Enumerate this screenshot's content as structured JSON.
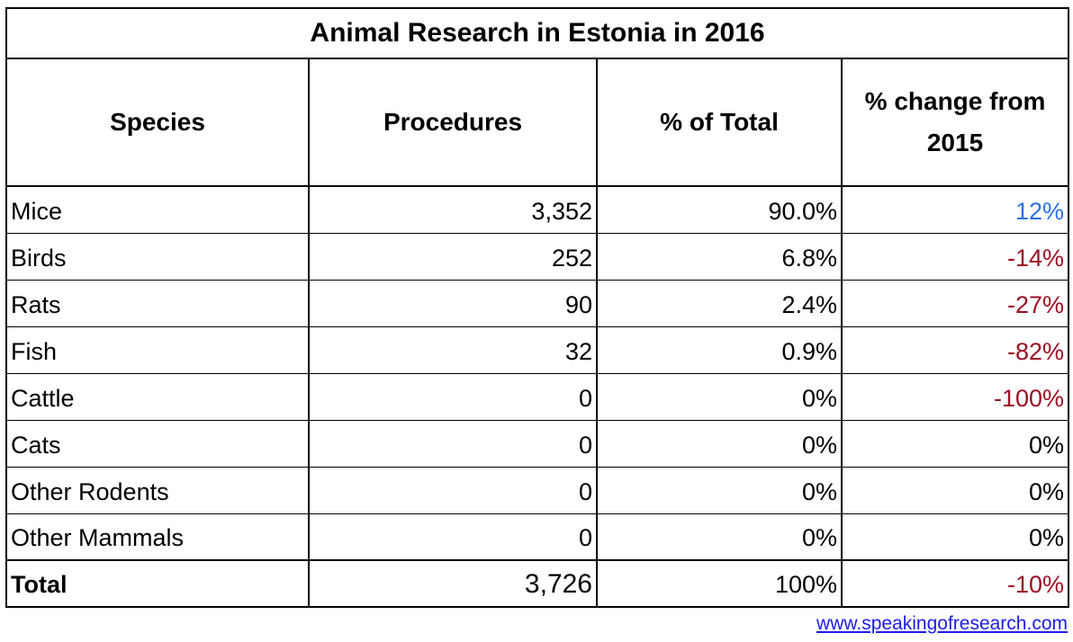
{
  "chart_data": {
    "type": "table",
    "title": "Animal Research in Estonia in 2016",
    "columns": [
      "Species",
      "Procedures",
      "% of Total",
      "% change from 2015"
    ],
    "rows": [
      {
        "species": "Mice",
        "procedures": "3,352",
        "pct_of_total": "90.0%",
        "pct_change_from_2015": "12%",
        "change_direction": "positive"
      },
      {
        "species": "Birds",
        "procedures": "252",
        "pct_of_total": "6.8%",
        "pct_change_from_2015": "-14%",
        "change_direction": "negative"
      },
      {
        "species": "Rats",
        "procedures": "90",
        "pct_of_total": "2.4%",
        "pct_change_from_2015": "-27%",
        "change_direction": "negative"
      },
      {
        "species": "Fish",
        "procedures": "32",
        "pct_of_total": "0.9%",
        "pct_change_from_2015": "-82%",
        "change_direction": "negative"
      },
      {
        "species": "Cattle",
        "procedures": "0",
        "pct_of_total": "0%",
        "pct_change_from_2015": "-100%",
        "change_direction": "negative"
      },
      {
        "species": "Cats",
        "procedures": "0",
        "pct_of_total": "0%",
        "pct_change_from_2015": "0%",
        "change_direction": "neutral"
      },
      {
        "species": "Other Rodents",
        "procedures": "0",
        "pct_of_total": "0%",
        "pct_change_from_2015": "0%",
        "change_direction": "neutral"
      },
      {
        "species": "Other Mammals",
        "procedures": "0",
        "pct_of_total": "0%",
        "pct_change_from_2015": "0%",
        "change_direction": "neutral"
      }
    ],
    "total_row": {
      "species": "Total",
      "procedures": "3,726",
      "pct_of_total": "100%",
      "pct_change_from_2015": "-10%",
      "change_direction": "negative"
    },
    "layout": {
      "grid": "bordered-table",
      "legend": "none"
    }
  },
  "footer": {
    "link_text": "www.speakingofresearch.com"
  },
  "colors": {
    "positive_change": "#2B6FE3",
    "negative_change": "#9B0F23",
    "neutral_change": "#000000",
    "link": "#1C1CEB",
    "border": "#000000",
    "background": "#FFFFFF"
  }
}
